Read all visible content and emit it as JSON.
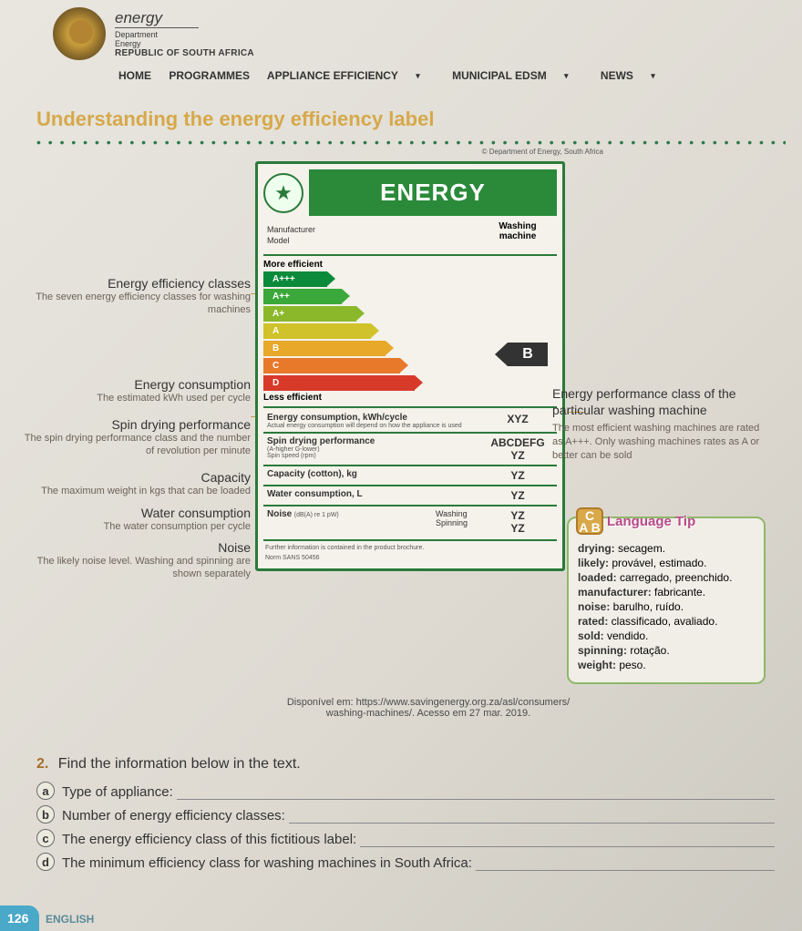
{
  "header": {
    "title": "energy",
    "dept": "Department",
    "sub": "Energy",
    "republic": "REPUBLIC OF SOUTH AFRICA"
  },
  "nav": {
    "home": "HOME",
    "programmes": "PROGRAMMES",
    "appliance": "APPLIANCE EFFICIENCY",
    "municipal": "MUNICIPAL EDSM",
    "news": "NEWS"
  },
  "title": "Understanding the energy efficiency label",
  "credit": "© Department of Energy, South Africa",
  "label": {
    "energy": "ENERGY",
    "appliance_type_l1": "Washing",
    "appliance_type_l2": "machine",
    "manufacturer": "Manufacturer",
    "model": "Model",
    "more": "More efficient",
    "less": "Less efficient",
    "classes": [
      "A+++",
      "A++",
      "A+",
      "A",
      "B",
      "C",
      "D"
    ],
    "class_colors": [
      "#0a8a3a",
      "#3aa83a",
      "#8ab82a",
      "#d0c22a",
      "#e8a82a",
      "#e8782a",
      "#d83a2a"
    ],
    "rating": "B",
    "rows": {
      "energy_t": "Energy consumption, kWh/cycle",
      "energy_s": "Actual energy consumption will depend on how the appliance is used",
      "energy_v": "XYZ",
      "spin_t": "Spin drying performance",
      "spin_s1": "(A-higher G-lower)",
      "spin_s2": "Spin speed (rpm)",
      "spin_v1": "ABCDEFG",
      "spin_v2": "YZ",
      "cap_t": "Capacity (cotton), kg",
      "cap_v": "YZ",
      "water_t": "Water consumption, L",
      "water_v": "YZ",
      "noise_t": "Noise",
      "noise_s": "(dB(A) re 1 pW)",
      "noise_w": "Washing",
      "noise_sp": "Spinning",
      "noise_v1": "YZ",
      "noise_v2": "YZ"
    },
    "footer1": "Further information is contained in the product brochure.",
    "footer2": "Norm SANS 50456"
  },
  "left_callouts": [
    {
      "t": "Energy efficiency classes",
      "s": "The seven energy efficiency classes for washing machines"
    },
    {
      "t": "Energy consumption",
      "s": "The estimated kWh used per cycle"
    },
    {
      "t": "Spin drying performance",
      "s": "The spin drying performance class and the number of revolution per minute"
    },
    {
      "t": "Capacity",
      "s": "The maximum weight in kgs that can be loaded"
    },
    {
      "t": "Water consumption",
      "s": "The water consumption per cycle"
    },
    {
      "t": "Noise",
      "s": "The likely noise level. Washing and spinning are shown separately"
    }
  ],
  "right_callout": {
    "t": "Energy performance class of the particular washing machine",
    "s": "The most efficient washing machines are rated as A+++. Only washing machines rates as A or better can be sold"
  },
  "lang_tip": {
    "title": "Language Tip",
    "items": [
      {
        "k": "drying:",
        "v": " secagem."
      },
      {
        "k": "likely:",
        "v": " provável, estimado."
      },
      {
        "k": "loaded:",
        "v": " carregado, preenchido."
      },
      {
        "k": "manufacturer:",
        "v": " fabricante."
      },
      {
        "k": "noise:",
        "v": " barulho, ruído."
      },
      {
        "k": "rated:",
        "v": " classificado, avaliado."
      },
      {
        "k": "sold:",
        "v": " vendido."
      },
      {
        "k": "spinning:",
        "v": " rotação."
      },
      {
        "k": "weight:",
        "v": " peso."
      }
    ]
  },
  "source": {
    "l1": "Disponível em: https://www.savingenergy.org.za/asl/consumers/",
    "l2": "washing-machines/. Acesso em 27 mar. 2019."
  },
  "exercise": {
    "num": "2.",
    "q": "Find the information below in the text.",
    "items": [
      {
        "l": "a",
        "t": "Type of appliance:"
      },
      {
        "l": "b",
        "t": "Number of energy efficiency classes:"
      },
      {
        "l": "c",
        "t": "The energy efficiency class of this fictitious label:"
      },
      {
        "l": "d",
        "t": "The minimum efficiency class for washing machines in South Africa:"
      }
    ]
  },
  "footer": {
    "page": "126",
    "subject": "ENGLISH"
  }
}
